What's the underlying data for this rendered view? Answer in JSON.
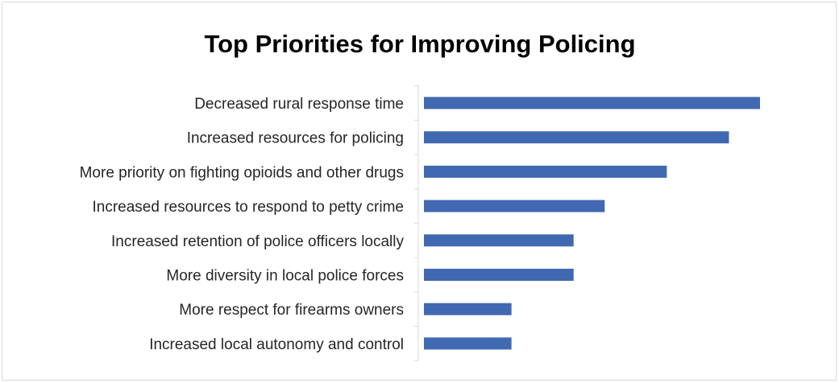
{
  "chart_data": {
    "type": "bar",
    "orientation": "horizontal",
    "title": "Top Priorities for Improving Policing",
    "categories": [
      "Decreased rural response time",
      "Increased resources for policing",
      "More priority on fighting opioids and other drugs",
      "Increased resources to respond to petty crime",
      "Increased retention of police officers locally",
      "More diversity in local police forces",
      "More respect for firearms owners",
      "Increased local autonomy and control"
    ],
    "values": [
      11,
      10,
      8,
      6,
      5,
      5,
      3,
      3
    ],
    "xlim": [
      0,
      11
    ],
    "grid": false,
    "bar_color": "#4169b1"
  }
}
